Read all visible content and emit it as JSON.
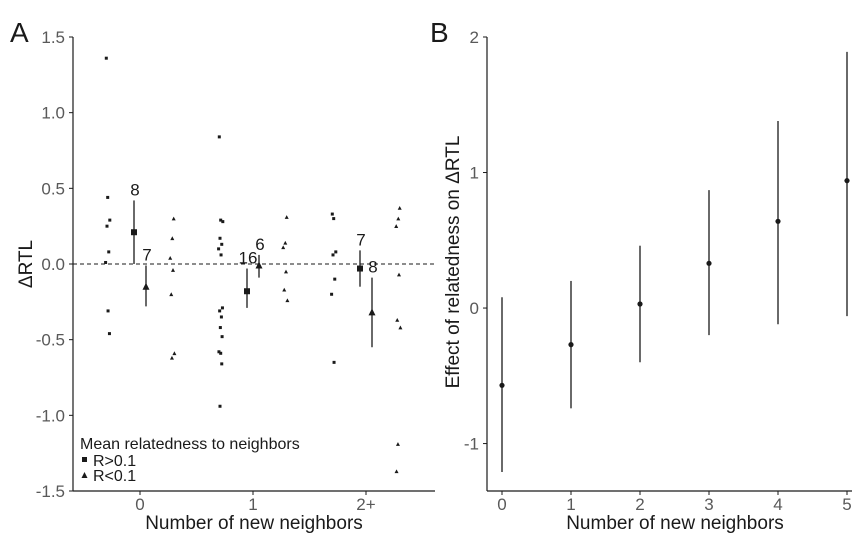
{
  "chart_data": [
    {
      "panel": "A",
      "type": "scatter",
      "xlabel": "Number of new neighbors",
      "ylabel": "ΔRTL",
      "categories": [
        "0",
        "1",
        "2+"
      ],
      "ylim": [
        -1.5,
        1.5
      ],
      "yticks": [
        -1.5,
        -1.0,
        -0.5,
        0.0,
        0.5,
        1.0,
        1.5
      ],
      "ytick_labels": [
        "-1.5",
        "-1.0",
        "-0.5",
        "0.0",
        "0.5",
        "1.0",
        "1.5"
      ],
      "reference_line": 0,
      "grid": false,
      "legend": {
        "title": "Mean relatedness to neighbors",
        "placement": "bottom-left",
        "entries": [
          {
            "label": "R>0.1",
            "marker": "square"
          },
          {
            "label": "R<0.1",
            "marker": "triangle"
          }
        ]
      },
      "groups": [
        {
          "category": "0",
          "series": "R>0.1",
          "mean": 0.21,
          "ci": [
            0.0,
            0.42
          ],
          "n": "8",
          "points": [
            1.36,
            0.44,
            0.29,
            0.25,
            0.08,
            0.01,
            -0.31,
            -0.46
          ]
        },
        {
          "category": "0",
          "series": "R<0.1",
          "mean": -0.15,
          "ci": [
            -0.28,
            -0.01
          ],
          "n": "7",
          "points": [
            0.3,
            0.17,
            0.04,
            -0.04,
            -0.2,
            -0.59,
            -0.62
          ]
        },
        {
          "category": "1",
          "series": "R>0.1",
          "mean": -0.18,
          "ci": [
            -0.29,
            -0.03
          ],
          "n": "16",
          "points": [
            0.84,
            0.29,
            0.28,
            0.17,
            0.13,
            0.1,
            0.06,
            -0.29,
            -0.31,
            -0.35,
            -0.42,
            -0.48,
            -0.58,
            -0.59,
            -0.66,
            -0.94
          ]
        },
        {
          "category": "1",
          "series": "R<0.1",
          "mean": -0.01,
          "ci": [
            -0.09,
            0.06
          ],
          "n": "6",
          "points": [
            0.31,
            0.14,
            0.11,
            -0.05,
            -0.17,
            -0.24
          ]
        },
        {
          "category": "2+",
          "series": "R>0.1",
          "mean": -0.03,
          "ci": [
            -0.15,
            0.09
          ],
          "n": "7",
          "points": [
            0.33,
            0.3,
            0.08,
            0.06,
            -0.1,
            -0.2,
            -0.65
          ]
        },
        {
          "category": "2+",
          "series": "R<0.1",
          "mean": -0.32,
          "ci": [
            -0.55,
            -0.09
          ],
          "n": "8",
          "points": [
            0.37,
            0.3,
            0.25,
            -0.07,
            -0.37,
            -0.42,
            -1.19,
            -1.37
          ]
        }
      ]
    },
    {
      "panel": "B",
      "type": "scatter",
      "xlabel": "Number of new neighbors",
      "ylabel": "Effect of relatedness on ΔRTL",
      "x": [
        0,
        1,
        2,
        3,
        4,
        5
      ],
      "xtick_labels": [
        "0",
        "1",
        "2",
        "3",
        "4",
        "5"
      ],
      "ylim": [
        -1.35,
        2.0
      ],
      "yticks": [
        -1,
        0,
        1,
        2
      ],
      "ytick_labels": [
        "-1",
        "0",
        "1",
        "2"
      ],
      "grid": false,
      "estimates": [
        -0.57,
        -0.27,
        0.03,
        0.33,
        0.64,
        0.94
      ],
      "ci_low": [
        -1.21,
        -0.74,
        -0.4,
        -0.2,
        -0.12,
        -0.06
      ],
      "ci_high": [
        0.08,
        0.2,
        0.46,
        0.87,
        1.38,
        1.89
      ]
    }
  ]
}
